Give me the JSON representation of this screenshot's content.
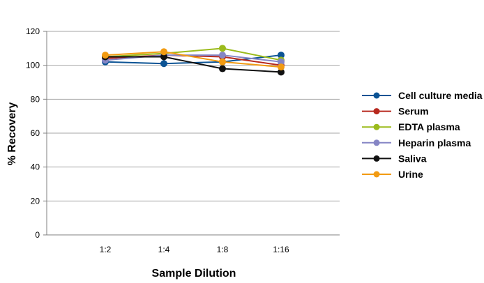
{
  "chart_data": {
    "type": "line",
    "title": "",
    "xlabel": "Sample Dilution",
    "ylabel": "% Recovery",
    "categories": [
      "1:2",
      "1:4",
      "1:8",
      "1:16"
    ],
    "ylim": [
      0,
      120
    ],
    "yticks": [
      0,
      20,
      40,
      60,
      80,
      100,
      120
    ],
    "grid": true,
    "legend_position": "right",
    "series": [
      {
        "name": "Cell culture media",
        "color": "#0b5394",
        "values": [
          102,
          101,
          102,
          106
        ]
      },
      {
        "name": "Serum",
        "color": "#b7281e",
        "values": [
          104,
          106,
          105,
          100
        ]
      },
      {
        "name": "EDTA plasma",
        "color": "#9bbb1c",
        "values": [
          105,
          107,
          110,
          103
        ]
      },
      {
        "name": "Heparin plasma",
        "color": "#8585c5",
        "values": [
          103,
          106,
          106,
          102
        ]
      },
      {
        "name": "Saliva",
        "color": "#111111",
        "values": [
          105,
          105,
          98,
          96
        ]
      },
      {
        "name": "Urine",
        "color": "#f29b12",
        "values": [
          106,
          108,
          102,
          99
        ]
      }
    ]
  }
}
